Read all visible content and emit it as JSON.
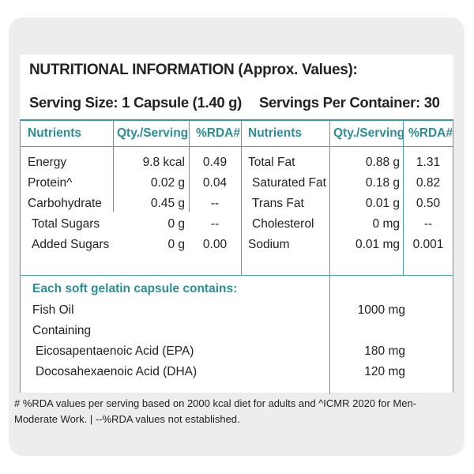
{
  "title": "NUTRITIONAL INFORMATION (Approx. Values):",
  "serving_size": "Serving Size: 1 Capsule (1.40 g)",
  "servings_per_container": "Servings Per Container: 30",
  "headers": {
    "left": [
      "Nutrients",
      "Qty./Serving",
      "%RDA#"
    ],
    "right": [
      "Nutrients",
      "Qty./Serving",
      "%RDA#"
    ]
  },
  "left_rows": [
    {
      "name": "Energy",
      "qty": "9.8 kcal",
      "rda": "0.49"
    },
    {
      "name": "Protein^",
      "qty": "0.02 g",
      "rda": "0.04"
    },
    {
      "name": "Carbohydrate",
      "qty": "0.45 g",
      "rda": "--"
    },
    {
      "name": "Total Sugars",
      "qty": "0 g",
      "rda": "--"
    },
    {
      "name": "Added Sugars",
      "qty": "0 g",
      "rda": "0.00"
    }
  ],
  "right_rows": [
    {
      "name": "Total Fat",
      "qty": "0.88 g",
      "rda": "1.31"
    },
    {
      "name": "Saturated Fat",
      "qty": "0.18 g",
      "rda": "0.82"
    },
    {
      "name": "Trans Fat",
      "qty": "0.01 g",
      "rda": "0.50"
    },
    {
      "name": "Cholesterol",
      "qty": "0 mg",
      "rda": "--"
    },
    {
      "name": "Sodium",
      "qty": "0.01 mg",
      "rda": "0.001"
    }
  ],
  "capsule_heading": "Each soft gelatin capsule contains:",
  "capsule_rows": [
    {
      "name": "Fish Oil",
      "qty": "1000 mg"
    },
    {
      "name": "Containing",
      "qty": ""
    },
    {
      "name": "Eicosapentaenoic Acid (EPA)",
      "qty": "180 mg"
    },
    {
      "name": "Docosahexaenoic Acid (DHA)",
      "qty": "120 mg"
    }
  ],
  "footnote": "# %RDA values per serving based on 2000 kcal diet for adults and ^ICMR 2020 for Men-Moderate Work.   |  --%RDA values not established.",
  "colors": {
    "accent": "#2b8f95",
    "rule": "#4aa3a8",
    "card": "#ededed"
  }
}
